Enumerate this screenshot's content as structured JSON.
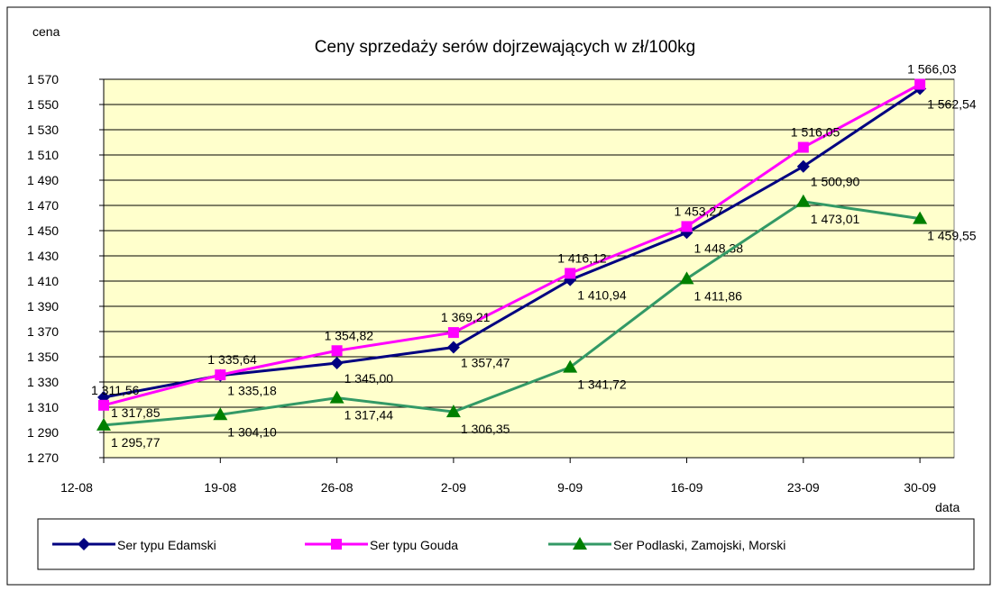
{
  "chart_data": {
    "type": "line",
    "title": "Ceny sprzedaży serów dojrzewających w zł/100kg",
    "y_label": "cena",
    "x_label": "data",
    "categories": [
      "12-08",
      "19-08",
      "26-08",
      "2-09",
      "9-09",
      "16-09",
      "23-09",
      "30-09"
    ],
    "ylim": [
      1270,
      1570
    ],
    "yticks": [
      {
        "value": 1270,
        "label": "1 270"
      },
      {
        "value": 1290,
        "label": "1 290"
      },
      {
        "value": 1310,
        "label": "1 310"
      },
      {
        "value": 1330,
        "label": "1 330"
      },
      {
        "value": 1350,
        "label": "1 350"
      },
      {
        "value": 1370,
        "label": "1 370"
      },
      {
        "value": 1390,
        "label": "1 390"
      },
      {
        "value": 1410,
        "label": "1 410"
      },
      {
        "value": 1430,
        "label": "1 430"
      },
      {
        "value": 1450,
        "label": "1 450"
      },
      {
        "value": 1470,
        "label": "1 470"
      },
      {
        "value": 1490,
        "label": "1 490"
      },
      {
        "value": 1510,
        "label": "1 510"
      },
      {
        "value": 1530,
        "label": "1 530"
      },
      {
        "value": 1550,
        "label": "1 550"
      },
      {
        "value": 1570,
        "label": "1 570"
      }
    ],
    "grid": true,
    "legend": "bottom",
    "series": [
      {
        "name": "Ser typu Edamski",
        "color": "#000080",
        "marker": "diamond",
        "values": [
          1317.85,
          1335.18,
          1345.0,
          1357.47,
          1410.94,
          1448.38,
          1500.9,
          1562.54
        ],
        "value_labels": [
          "1 317,85",
          "1 335,18",
          "1 345,00",
          "1 357,47",
          "1 410,94",
          "1 448,38",
          "1 500,90",
          "1 562,54"
        ]
      },
      {
        "name": "Ser typu Gouda",
        "color": "#ff00ff",
        "marker": "square",
        "values": [
          1311.56,
          1335.64,
          1354.82,
          1369.21,
          1416.12,
          1453.27,
          1516.05,
          1566.03
        ],
        "value_labels": [
          "1 311,56",
          "1 335,64",
          "1 354,82",
          "1 369,21",
          "1 416,12",
          "1 453,27",
          "1 516,05",
          "1 566,03"
        ]
      },
      {
        "name": "Ser Podlaski, Zamojski, Morski",
        "color": "#339966",
        "marker_color": "#008000",
        "marker": "triangle",
        "values": [
          1295.77,
          1304.1,
          1317.44,
          1306.35,
          1341.72,
          1411.86,
          1473.01,
          1459.55
        ],
        "value_labels": [
          "1 295,77",
          "1 304,10",
          "1 317,44",
          "1 306,35",
          "1 341,72",
          "1 411,86",
          "1 473,01",
          "1 459,55"
        ]
      }
    ]
  }
}
